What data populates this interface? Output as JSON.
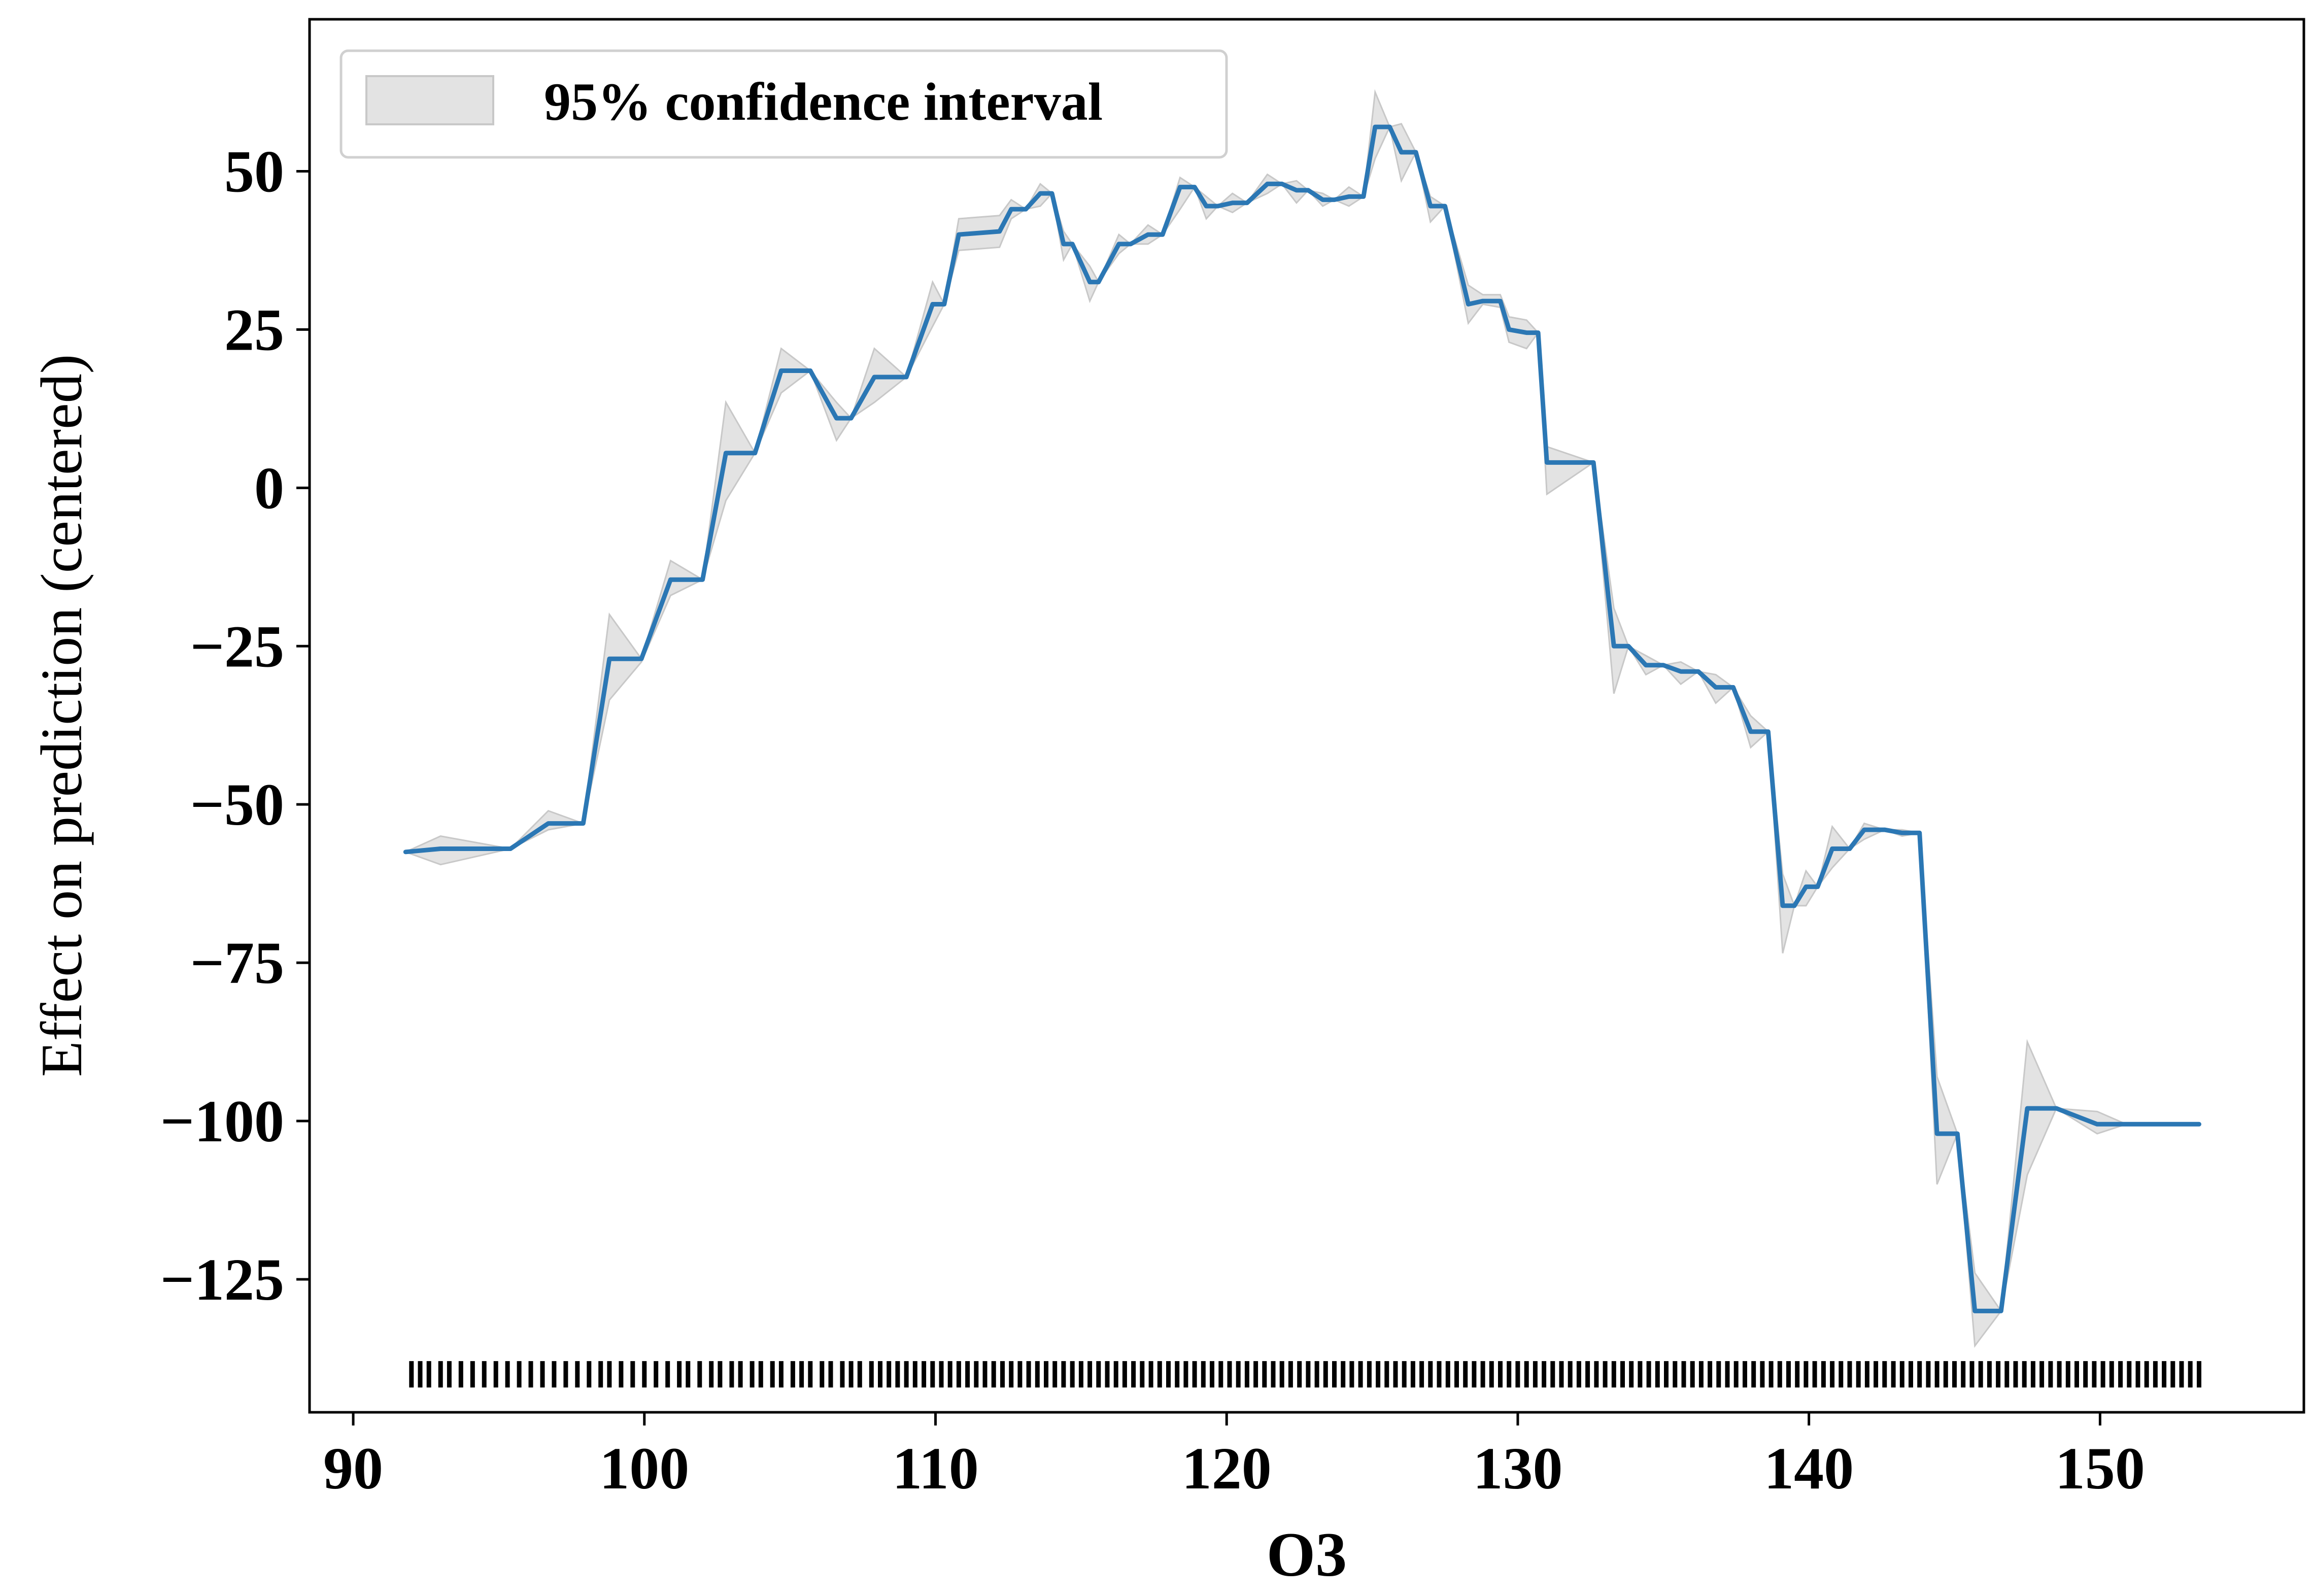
{
  "chart_data": {
    "type": "line",
    "title": "",
    "xlabel": "O3",
    "ylabel": "Effect on prediction (centered)",
    "xlim": [
      88.5,
      157
    ],
    "ylim": [
      -146,
      74
    ],
    "xticks": [
      90,
      100,
      110,
      120,
      130,
      140,
      150
    ],
    "yticks": [
      50,
      25,
      0,
      -25,
      -50,
      -75,
      -100,
      -125
    ],
    "ytick_labels": [
      "50",
      "25",
      "0",
      "−25",
      "−50",
      "−75",
      "−100",
      "−125"
    ],
    "grid": false,
    "legend": {
      "position": "top-left",
      "entries": [
        "95% confidence interval"
      ]
    },
    "colors": {
      "line": "#2b77b4",
      "band": "#c8c8c8",
      "rug": "#000000"
    },
    "series": [
      {
        "x": [
          91.8,
          93.0,
          95.4,
          96.7,
          97.9,
          98.8,
          99.9,
          100.9,
          102.0,
          102.8,
          103.8,
          104.7,
          105.7,
          106.6,
          107.1,
          107.9,
          109.0,
          109.9,
          110.3,
          110.8,
          112.2,
          112.6,
          113.1,
          113.6,
          114.0,
          114.4,
          114.7,
          115.3,
          115.6,
          116.3,
          116.7,
          117.3,
          117.8,
          118.4,
          118.9,
          119.3,
          119.7,
          120.2,
          120.7,
          121.4,
          121.9,
          122.4,
          122.8,
          123.3,
          123.7,
          124.2,
          124.7,
          125.1,
          125.6,
          126.0,
          126.5,
          127.0,
          127.5,
          128.3,
          128.8,
          129.4,
          129.7,
          130.3,
          130.7,
          131.0,
          132.6,
          133.3,
          133.8,
          134.4,
          135.0,
          135.6,
          136.2,
          136.8,
          137.4,
          138.0,
          138.6,
          139.1,
          139.5,
          139.9,
          140.3,
          140.8,
          141.4,
          141.9,
          142.6,
          143.2,
          143.8,
          144.4,
          145.1,
          145.7,
          146.6,
          147.5,
          148.5,
          149.9,
          150.9,
          152.0,
          153.4
        ],
        "y": [
          -57.5,
          -57.0,
          -57.0,
          -53.0,
          -53.0,
          -27.0,
          -27.0,
          -14.5,
          -14.5,
          5.5,
          5.5,
          18.5,
          18.5,
          11.0,
          11.0,
          17.5,
          17.5,
          29.0,
          29.0,
          40.0,
          40.5,
          44.0,
          44.0,
          46.5,
          46.5,
          38.5,
          38.5,
          32.5,
          32.5,
          38.5,
          38.5,
          40.0,
          40.0,
          47.5,
          47.5,
          44.5,
          44.5,
          45.0,
          45.0,
          48.0,
          48.0,
          47.0,
          47.0,
          45.5,
          45.5,
          46.0,
          46.0,
          57.0,
          57.0,
          53.0,
          53.0,
          44.5,
          44.5,
          29.0,
          29.5,
          29.5,
          25.0,
          24.5,
          24.5,
          4.0,
          4.0,
          -25.0,
          -25.0,
          -28.0,
          -28.0,
          -29.0,
          -29.0,
          -31.5,
          -31.5,
          -38.5,
          -38.5,
          -66.0,
          -66.0,
          -63.0,
          -63.0,
          -57.0,
          -57.0,
          -54.0,
          -54.0,
          -54.5,
          -54.5,
          -102.0,
          -102.0,
          -130.0,
          -130.0,
          -98.0,
          -98.0,
          -100.5,
          -100.5,
          -100.5,
          -100.5
        ],
        "ci_lower": [
          -57.5,
          -59.5,
          -57.0,
          -54.0,
          -53.0,
          -33.5,
          -27.5,
          -17.0,
          -14.5,
          -2.0,
          5.5,
          15.0,
          18.5,
          7.5,
          11.0,
          13.5,
          17.5,
          25.5,
          29.0,
          37.5,
          38.0,
          42.5,
          44.0,
          44.5,
          46.5,
          36.0,
          38.5,
          29.5,
          32.5,
          37.0,
          38.5,
          38.5,
          40.0,
          44.0,
          47.5,
          42.5,
          44.5,
          43.5,
          45.0,
          46.5,
          48.0,
          45.0,
          47.0,
          44.5,
          45.5,
          44.5,
          46.0,
          52.0,
          57.0,
          48.5,
          53.0,
          42.0,
          44.5,
          26.0,
          29.0,
          28.5,
          23.0,
          22.0,
          24.5,
          -1.0,
          4.0,
          -32.5,
          -25.0,
          -29.5,
          -28.0,
          -31.0,
          -29.0,
          -34.0,
          -31.5,
          -41.0,
          -38.5,
          -73.5,
          -66.0,
          -66.0,
          -63.0,
          -60.0,
          -57.0,
          -55.5,
          -54.0,
          -55.0,
          -54.5,
          -110.0,
          -102.0,
          -135.5,
          -130.0,
          -108.5,
          -98.0,
          -102.0,
          -100.5,
          -100.5,
          -100.5
        ],
        "ci_upper": [
          -57.5,
          -55.0,
          -57.0,
          -51.0,
          -53.0,
          -20.0,
          -27.0,
          -11.5,
          -14.5,
          13.5,
          5.5,
          22.0,
          18.5,
          13.5,
          11.0,
          22.0,
          17.5,
          32.5,
          29.0,
          42.5,
          43.0,
          45.5,
          44.0,
          48.0,
          46.5,
          40.5,
          38.5,
          35.0,
          32.5,
          40.0,
          38.5,
          41.5,
          40.0,
          49.0,
          47.5,
          46.0,
          44.5,
          46.5,
          45.0,
          49.5,
          48.0,
          48.5,
          47.0,
          46.5,
          45.5,
          47.5,
          46.0,
          62.5,
          57.0,
          57.5,
          53.0,
          46.0,
          44.5,
          32.0,
          30.5,
          30.5,
          27.0,
          26.5,
          24.5,
          6.5,
          4.0,
          -19.0,
          -25.0,
          -26.5,
          -28.0,
          -27.5,
          -29.0,
          -29.5,
          -31.5,
          -36.0,
          -38.5,
          -61.0,
          -66.0,
          -60.5,
          -63.0,
          -53.5,
          -57.0,
          -53.0,
          -54.0,
          -54.0,
          -54.5,
          -93.0,
          -102.0,
          -124.0,
          -130.0,
          -87.5,
          -98.0,
          -98.5,
          -100.5,
          -100.5,
          -100.5
        ]
      }
    ],
    "rug": {
      "y": -140,
      "x": [
        92.0,
        92.3,
        92.6,
        93.0,
        93.3,
        93.7,
        94.1,
        94.5,
        94.9,
        95.3,
        95.7,
        96.1,
        96.5,
        96.9,
        97.3,
        97.7,
        98.1,
        98.5,
        98.8,
        99.2,
        99.6,
        100.0,
        100.4,
        100.8,
        101.2,
        101.5,
        101.9,
        102.3,
        102.6,
        103.0,
        103.3,
        103.7,
        104.0,
        104.4,
        104.7,
        105.1,
        105.4,
        105.7,
        106.1,
        106.4,
        106.8,
        107.1,
        107.4,
        107.8,
        108.1,
        108.4,
        108.7,
        109.0,
        109.3,
        109.6,
        109.9,
        110.2,
        110.5,
        110.8,
        111.1,
        111.4,
        111.7,
        112.0,
        112.3,
        112.6,
        112.9,
        113.2,
        113.5,
        113.8,
        114.1,
        114.4,
        114.7,
        115.0,
        115.3,
        115.6,
        115.9,
        116.2,
        116.5,
        116.8,
        117.1,
        117.4,
        117.7,
        118.0,
        118.3,
        118.6,
        118.9,
        119.2,
        119.5,
        119.8,
        120.1,
        120.4,
        120.7,
        121.0,
        121.3,
        121.6,
        121.9,
        122.2,
        122.5,
        122.8,
        123.1,
        123.4,
        123.7,
        124.0,
        124.3,
        124.6,
        124.9,
        125.2,
        125.5,
        125.8,
        126.1,
        126.4,
        126.7,
        127.0,
        127.3,
        127.6,
        127.9,
        128.2,
        128.5,
        128.8,
        129.1,
        129.4,
        129.7,
        130.0,
        130.3,
        130.6,
        130.9,
        131.2,
        131.5,
        131.8,
        132.1,
        132.4,
        132.7,
        133.0,
        133.3,
        133.6,
        133.9,
        134.2,
        134.5,
        134.8,
        135.1,
        135.4,
        135.7,
        136.0,
        136.3,
        136.6,
        136.9,
        137.2,
        137.5,
        137.8,
        138.1,
        138.4,
        138.7,
        139.0,
        139.3,
        139.6,
        139.9,
        140.2,
        140.5,
        140.8,
        141.1,
        141.4,
        141.7,
        142.0,
        142.3,
        142.6,
        142.9,
        143.2,
        143.5,
        143.8,
        144.1,
        144.4,
        144.7,
        145.0,
        145.3,
        145.6,
        145.9,
        146.2,
        146.5,
        146.8,
        147.1,
        147.4,
        147.7,
        148.0,
        148.3,
        148.6,
        148.9,
        149.2,
        149.5,
        149.8,
        150.1,
        150.4,
        150.7,
        151.0,
        151.3,
        151.6,
        151.9,
        152.2,
        152.5,
        152.8,
        153.1,
        153.4
      ]
    }
  }
}
